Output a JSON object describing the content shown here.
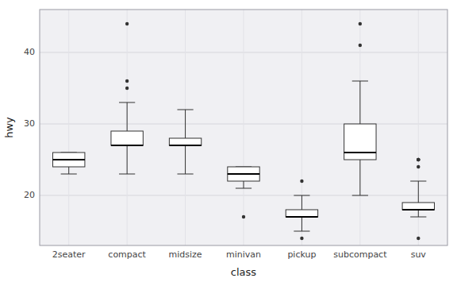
{
  "chart_data": {
    "type": "box",
    "xlabel": "class",
    "ylabel": "hwy",
    "categories": [
      "2seater",
      "compact",
      "midsize",
      "minivan",
      "pickup",
      "subcompact",
      "suv"
    ],
    "box_data": [
      {
        "whisker_low": 23,
        "q1": 24,
        "median": 25,
        "q3": 26,
        "whisker_high": 26,
        "outliers": []
      },
      {
        "whisker_low": 23,
        "q1": 27,
        "median": 27,
        "q3": 29,
        "whisker_high": 33,
        "outliers": [
          44,
          36,
          35
        ]
      },
      {
        "whisker_low": 23,
        "q1": 27,
        "median": 27,
        "q3": 28,
        "whisker_high": 32,
        "outliers": []
      },
      {
        "whisker_low": 21,
        "q1": 22,
        "median": 23,
        "q3": 24,
        "whisker_high": 24,
        "outliers": [
          17
        ]
      },
      {
        "whisker_low": 15,
        "q1": 17,
        "median": 17,
        "q3": 18,
        "whisker_high": 20,
        "outliers": [
          22,
          14
        ]
      },
      {
        "whisker_low": 20,
        "q1": 25,
        "median": 26,
        "q3": 30,
        "whisker_high": 36,
        "outliers": [
          44,
          41
        ]
      },
      {
        "whisker_low": 17,
        "q1": 18,
        "median": 18,
        "q3": 19,
        "whisker_high": 22,
        "outliers": [
          25,
          25,
          25,
          24,
          14
        ]
      }
    ],
    "color": "white",
    "ylim": [
      13,
      46
    ],
    "yticks": [
      20,
      30,
      40
    ],
    "grid": true
  }
}
